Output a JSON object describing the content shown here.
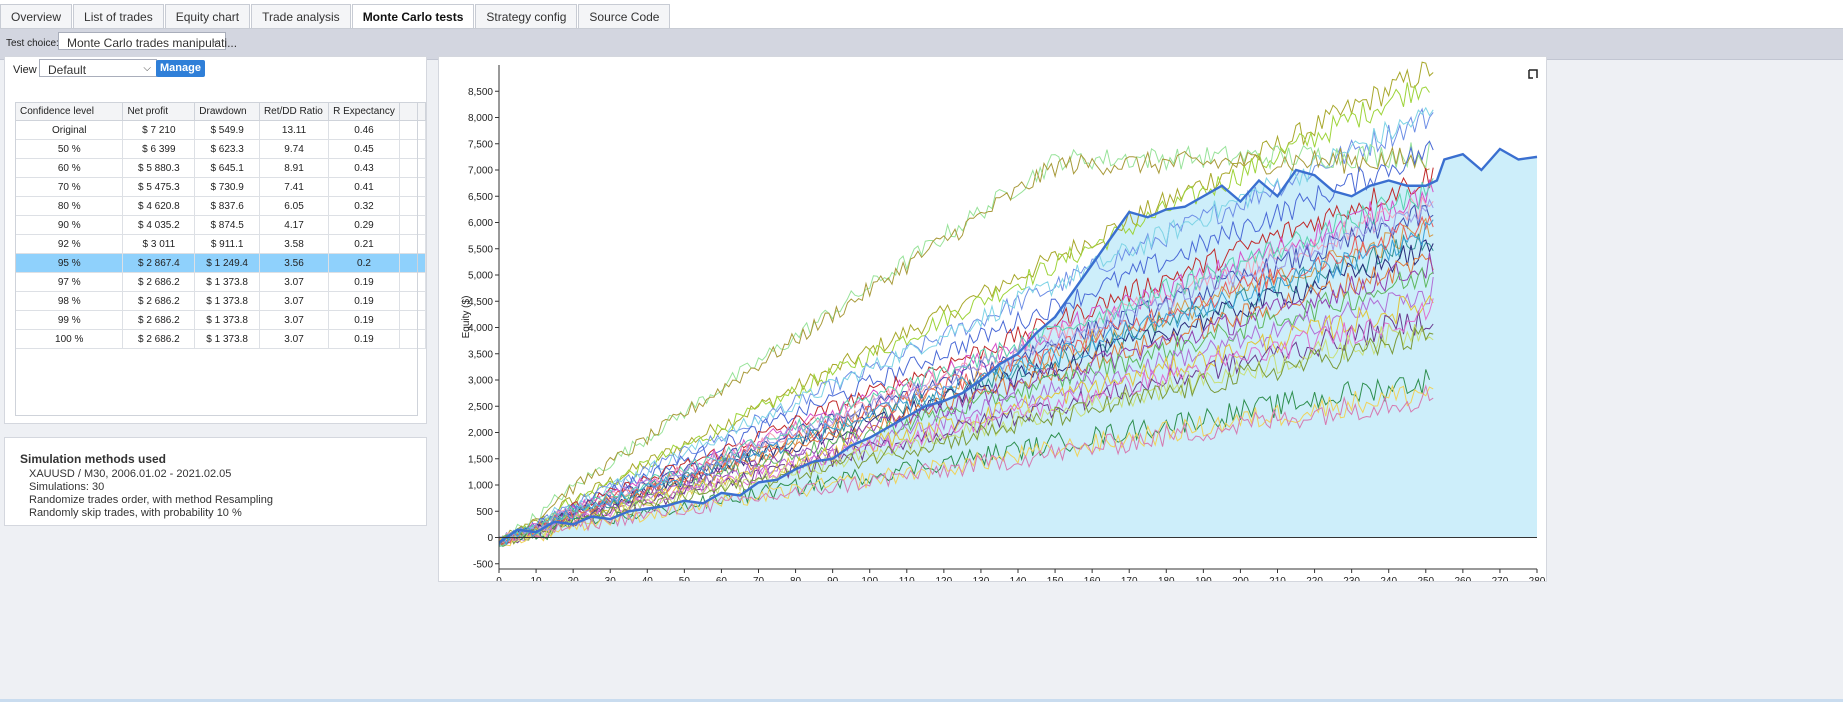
{
  "tabs": [
    {
      "label": "Overview",
      "active": false
    },
    {
      "label": "List of trades",
      "active": false
    },
    {
      "label": "Equity chart",
      "active": false
    },
    {
      "label": "Trade analysis",
      "active": false
    },
    {
      "label": "Monte Carlo tests",
      "active": true
    },
    {
      "label": "Strategy config",
      "active": false
    },
    {
      "label": "Source Code",
      "active": false
    }
  ],
  "toolbar": {
    "test_choice_label": "Test choice:",
    "test_choice_value": "Monte Carlo trades manipulati..."
  },
  "view": {
    "label": "View",
    "value": "Default",
    "manage_label": "Manage"
  },
  "table": {
    "columns": [
      "Confidence level",
      "Net profit",
      "Drawdown",
      "Ret/DD Ratio",
      "R Expectancy"
    ],
    "rows": [
      [
        "Original",
        "$ 7 210",
        "$ 549.9",
        "13.11",
        "0.46"
      ],
      [
        "50 %",
        "$ 6 399",
        "$ 623.3",
        "9.74",
        "0.45"
      ],
      [
        "60 %",
        "$ 5 880.3",
        "$ 645.1",
        "8.91",
        "0.43"
      ],
      [
        "70 %",
        "$ 5 475.3",
        "$ 730.9",
        "7.41",
        "0.41"
      ],
      [
        "80 %",
        "$ 4 620.8",
        "$ 837.6",
        "6.05",
        "0.32"
      ],
      [
        "90 %",
        "$ 4 035.2",
        "$ 874.5",
        "4.17",
        "0.29"
      ],
      [
        "92 %",
        "$ 3 011",
        "$ 911.1",
        "3.58",
        "0.21"
      ],
      [
        "95 %",
        "$ 2 867.4",
        "$ 1 249.4",
        "3.56",
        "0.2"
      ],
      [
        "97 %",
        "$ 2 686.2",
        "$ 1 373.8",
        "3.07",
        "0.19"
      ],
      [
        "98 %",
        "$ 2 686.2",
        "$ 1 373.8",
        "3.07",
        "0.19"
      ],
      [
        "99 %",
        "$ 2 686.2",
        "$ 1 373.8",
        "3.07",
        "0.19"
      ],
      [
        "100 %",
        "$ 2 686.2",
        "$ 1 373.8",
        "3.07",
        "0.19"
      ]
    ],
    "selected_row": 7
  },
  "simulation": {
    "title": "Simulation methods used",
    "lines": [
      "XAUUSD / M30, 2006.01.02 - 2021.02.05",
      "Simulations: 30",
      "Randomize trades order, with method Resampling",
      "Randomly skip trades, with probability 10 %"
    ]
  },
  "chart_data": {
    "type": "line",
    "ylabel": "Equity ($)",
    "xlabel": "",
    "xlim": [
      0,
      280
    ],
    "ylim": [
      -600,
      9000
    ],
    "x_ticks": [
      0,
      10,
      20,
      30,
      40,
      50,
      60,
      70,
      80,
      90,
      100,
      110,
      120,
      130,
      140,
      150,
      160,
      170,
      180,
      190,
      200,
      210,
      220,
      230,
      240,
      250,
      260,
      270,
      280
    ],
    "y_ticks": [
      -500,
      0,
      500,
      1000,
      1500,
      2000,
      2500,
      3000,
      3500,
      4000,
      4500,
      5000,
      5500,
      6000,
      6500,
      7000,
      7500,
      8000,
      8500
    ],
    "y_tick_labels": [
      "-500",
      "0",
      "500",
      "1,000",
      "1,500",
      "2,000",
      "2,500",
      "3,000",
      "3,500",
      "4,000",
      "4,500",
      "5,000",
      "5,500",
      "6,000",
      "6,500",
      "7,000",
      "7,500",
      "8,000",
      "8,500"
    ],
    "grid": false,
    "fill_color": "#cdeefa",
    "original_color": "#3a6fd0",
    "original": {
      "x": [
        0,
        5,
        10,
        15,
        20,
        25,
        30,
        35,
        40,
        45,
        50,
        55,
        60,
        65,
        70,
        75,
        80,
        85,
        90,
        95,
        100,
        105,
        110,
        115,
        120,
        125,
        130,
        135,
        140,
        145,
        150,
        155,
        160,
        165,
        170,
        175,
        180,
        185,
        190,
        195,
        200,
        205,
        210,
        215,
        220,
        225,
        230,
        235,
        240,
        245,
        250,
        253,
        255,
        260,
        265,
        270,
        275,
        280
      ],
      "y": [
        -100,
        150,
        100,
        300,
        250,
        400,
        350,
        500,
        550,
        600,
        700,
        650,
        850,
        800,
        1050,
        1100,
        1300,
        1450,
        1500,
        1750,
        1900,
        2100,
        2300,
        2500,
        2600,
        2750,
        3000,
        3300,
        3500,
        3900,
        4200,
        4700,
        5200,
        5700,
        6200,
        6100,
        6250,
        6300,
        6500,
        6700,
        6400,
        6800,
        6500,
        7000,
        6900,
        6600,
        6500,
        6700,
        6800,
        6700,
        6700,
        6800,
        7200,
        7300,
        7000,
        7400,
        7200,
        7250
      ]
    },
    "series": [
      {
        "color": "#a8a82c",
        "end_x": 252,
        "end_y": 8950,
        "peak": 0
      },
      {
        "color": "#9ed43a",
        "end_x": 251,
        "end_y": 8700,
        "peak": 0
      },
      {
        "color": "#6f8fe6",
        "end_x": 252,
        "end_y": 8050,
        "peak": 0
      },
      {
        "color": "#7fd4e6",
        "end_x": 252,
        "end_y": 8100,
        "peak": 0
      },
      {
        "color": "#98e39a",
        "end_x": 251,
        "end_y": 7300,
        "peak": 7200
      },
      {
        "color": "#a89a3a",
        "end_x": 251,
        "end_y": 7200,
        "peak": 7100
      },
      {
        "color": "#4b6ad6",
        "end_x": 252,
        "end_y": 7400,
        "peak": 0
      },
      {
        "color": "#c02a2a",
        "end_x": 252,
        "end_y": 6900,
        "peak": 0
      },
      {
        "color": "#d64fc8",
        "end_x": 252,
        "end_y": 6600,
        "peak": 0
      },
      {
        "color": "#f4a3b8",
        "end_x": 252,
        "end_y": 6400,
        "peak": 0
      },
      {
        "color": "#3f4fb0",
        "end_x": 252,
        "end_y": 6200,
        "peak": 0
      },
      {
        "color": "#d49a4a",
        "end_x": 252,
        "end_y": 5900,
        "peak": 0
      },
      {
        "color": "#2f8f8f",
        "end_x": 252,
        "end_y": 5700,
        "peak": 0
      },
      {
        "color": "#2a2a7a",
        "end_x": 252,
        "end_y": 5500,
        "peak": 0
      },
      {
        "color": "#e07a3a",
        "end_x": 252,
        "end_y": 5300,
        "peak": 0
      },
      {
        "color": "#8f3fae",
        "end_x": 252,
        "end_y": 5200,
        "peak": 0
      },
      {
        "color": "#5fb85f",
        "end_x": 252,
        "end_y": 5000,
        "peak": 0
      },
      {
        "color": "#b06fd6",
        "end_x": 252,
        "end_y": 4700,
        "peak": 0
      },
      {
        "color": "#e0c63a",
        "end_x": 252,
        "end_y": 4500,
        "peak": 0
      },
      {
        "color": "#6a3a8f",
        "end_x": 252,
        "end_y": 4200,
        "peak": 0
      },
      {
        "color": "#df6fcf",
        "end_x": 252,
        "end_y": 4300,
        "peak": 0
      },
      {
        "color": "#c8e07a",
        "end_x": 252,
        "end_y": 4000,
        "peak": 0
      },
      {
        "color": "#7a9a3a",
        "end_x": 252,
        "end_y": 3850,
        "peak": 0
      },
      {
        "color": "#2f8f4f",
        "end_x": 251,
        "end_y": 3000,
        "peak": 0
      },
      {
        "color": "#f0d25a",
        "end_x": 252,
        "end_y": 2800,
        "peak": 0
      },
      {
        "color": "#d67ab0",
        "end_x": 252,
        "end_y": 2700,
        "peak": 0
      },
      {
        "color": "#e85a5a",
        "end_x": 252,
        "end_y": 6000,
        "peak": 0
      },
      {
        "color": "#5ad4b0",
        "end_x": 252,
        "end_y": 6600,
        "peak": 0
      },
      {
        "color": "#9a9ae6",
        "end_x": 252,
        "end_y": 6300,
        "peak": 0
      },
      {
        "color": "#3aa0d6",
        "end_x": 252,
        "end_y": 5800,
        "peak": 0
      }
    ]
  }
}
